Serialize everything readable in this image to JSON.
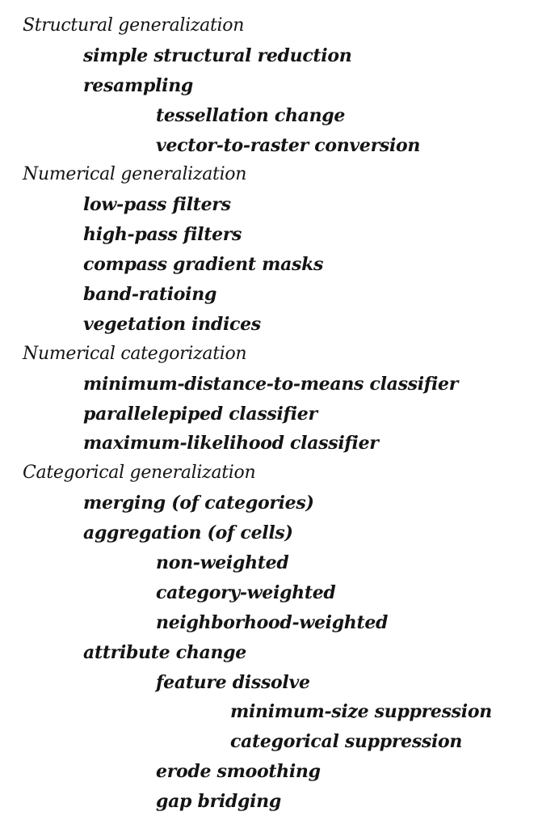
{
  "outline": [
    {
      "text": "Structural generalization",
      "level": 0
    },
    {
      "text": "simple structural reduction",
      "level": 1
    },
    {
      "text": "resampling",
      "level": 1
    },
    {
      "text": "tessellation change",
      "level": 2
    },
    {
      "text": "vector-to-raster conversion",
      "level": 2
    },
    {
      "text": "Numerical generalization",
      "level": 0
    },
    {
      "text": "low-pass filters",
      "level": 1
    },
    {
      "text": "high-pass filters",
      "level": 1
    },
    {
      "text": "compass gradient masks",
      "level": 1
    },
    {
      "text": "band-ratioing",
      "level": 1
    },
    {
      "text": "vegetation indices",
      "level": 1
    },
    {
      "text": "Numerical categorization",
      "level": 0
    },
    {
      "text": "minimum-distance-to-means classifier",
      "level": 1
    },
    {
      "text": "parallelepiped classifier",
      "level": 1
    },
    {
      "text": "maximum-likelihood classifier",
      "level": 1
    },
    {
      "text": "Categorical generalization",
      "level": 0
    },
    {
      "text": "merging (of categories)",
      "level": 1
    },
    {
      "text": "aggregation (of cells)",
      "level": 1
    },
    {
      "text": "non-weighted",
      "level": 2
    },
    {
      "text": "category-weighted",
      "level": 2
    },
    {
      "text": "neighborhood-weighted",
      "level": 2
    },
    {
      "text": "attribute change",
      "level": 1
    },
    {
      "text": "feature dissolve",
      "level": 2
    },
    {
      "text": "minimum-size suppression",
      "level": 3
    },
    {
      "text": "categorical suppression",
      "level": 3
    },
    {
      "text": "erode smoothing",
      "level": 2
    },
    {
      "text": "gap bridging",
      "level": 2
    }
  ]
}
